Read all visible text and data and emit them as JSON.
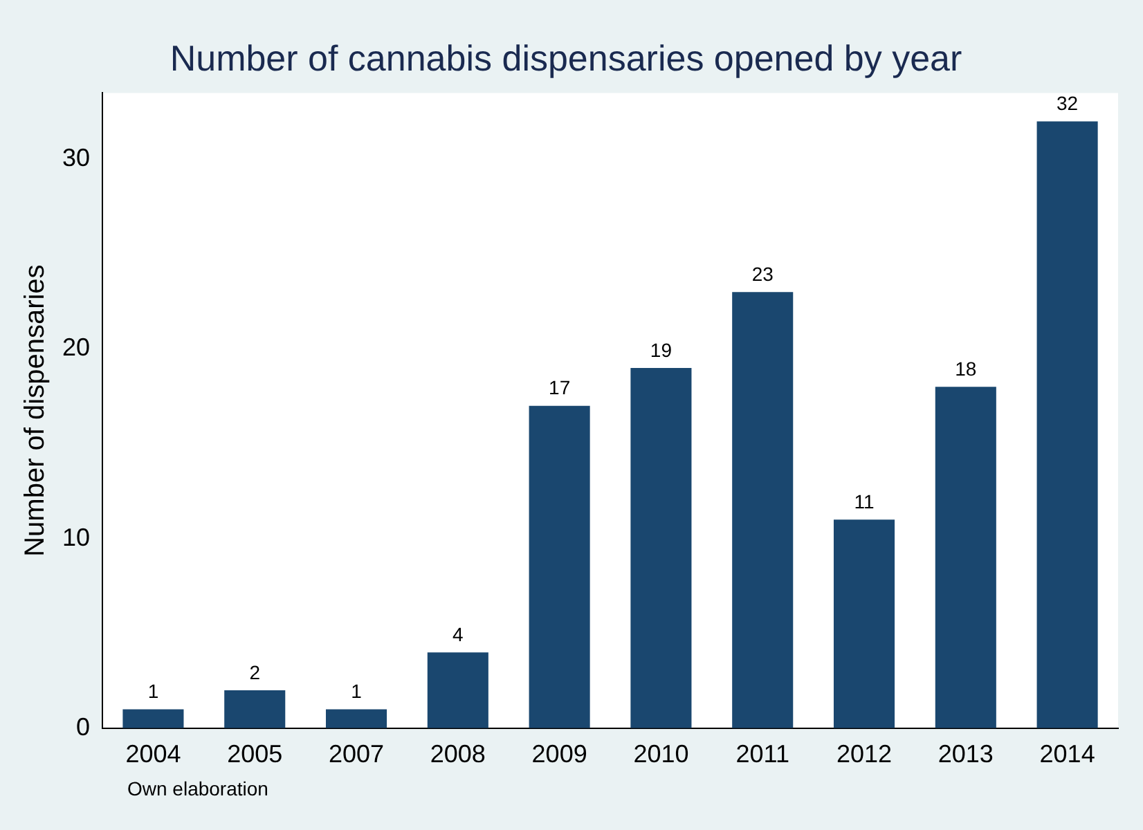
{
  "chart_data": {
    "type": "bar",
    "title": "Number of cannabis dispensaries opened by year",
    "ylabel": "Number of dispensaries",
    "categories": [
      "2004",
      "2005",
      "2007",
      "2008",
      "2009",
      "2010",
      "2011",
      "2012",
      "2013",
      "2014"
    ],
    "values": [
      1,
      2,
      1,
      4,
      17,
      19,
      23,
      11,
      18,
      32
    ],
    "color": "#1a476f",
    "ylim": [
      0,
      33.5
    ],
    "yticks": [
      0,
      10,
      20,
      30
    ],
    "grid": false,
    "legend": false,
    "data_labels": true,
    "annotations": [
      "Own elaboration"
    ]
  }
}
